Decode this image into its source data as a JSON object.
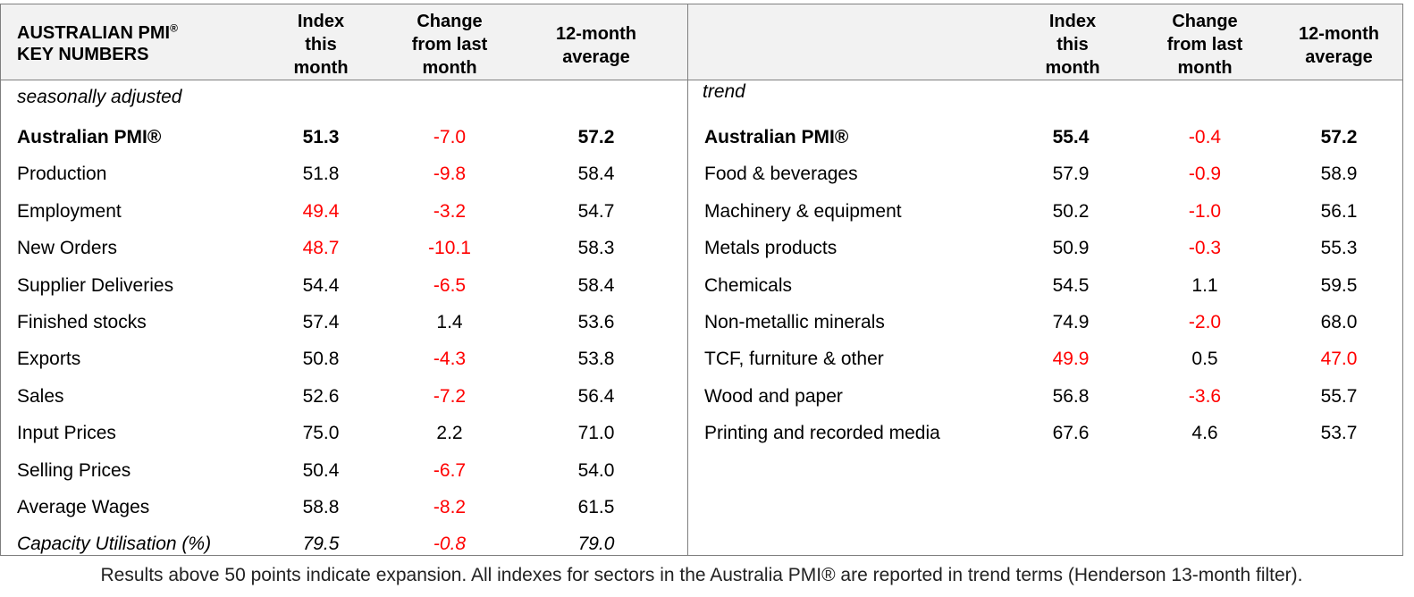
{
  "left": {
    "title_line1": "AUSTRALIAN PMI",
    "title_reg": "®",
    "title_line2": "KEY NUMBERS",
    "headers": [
      [
        "Index",
        "this",
        "month"
      ],
      [
        "Change",
        "from last",
        "month"
      ],
      [
        "12-month",
        "average"
      ]
    ],
    "subtitle": "seasonally adjusted",
    "rows": [
      {
        "label": "Australian PMI®",
        "index": "51.3",
        "change": "-7.0",
        "avg": "57.2",
        "bold": true,
        "italic": false,
        "index_red": false,
        "change_red": true,
        "avg_red": false
      },
      {
        "label": "Production",
        "index": "51.8",
        "change": "-9.8",
        "avg": "58.4",
        "bold": false,
        "italic": false,
        "index_red": false,
        "change_red": true,
        "avg_red": false
      },
      {
        "label": "Employment",
        "index": "49.4",
        "change": "-3.2",
        "avg": "54.7",
        "bold": false,
        "italic": false,
        "index_red": true,
        "change_red": true,
        "avg_red": false
      },
      {
        "label": "New Orders",
        "index": "48.7",
        "change": "-10.1",
        "avg": "58.3",
        "bold": false,
        "italic": false,
        "index_red": true,
        "change_red": true,
        "avg_red": false
      },
      {
        "label": "Supplier Deliveries",
        "index": "54.4",
        "change": "-6.5",
        "avg": "58.4",
        "bold": false,
        "italic": false,
        "index_red": false,
        "change_red": true,
        "avg_red": false
      },
      {
        "label": "Finished stocks",
        "index": "57.4",
        "change": "1.4",
        "avg": "53.6",
        "bold": false,
        "italic": false,
        "index_red": false,
        "change_red": false,
        "avg_red": false
      },
      {
        "label": "Exports",
        "index": "50.8",
        "change": "-4.3",
        "avg": "53.8",
        "bold": false,
        "italic": false,
        "index_red": false,
        "change_red": true,
        "avg_red": false
      },
      {
        "label": "Sales",
        "index": "52.6",
        "change": "-7.2",
        "avg": "56.4",
        "bold": false,
        "italic": false,
        "index_red": false,
        "change_red": true,
        "avg_red": false
      },
      {
        "label": "Input Prices",
        "index": "75.0",
        "change": "2.2",
        "avg": "71.0",
        "bold": false,
        "italic": false,
        "index_red": false,
        "change_red": false,
        "avg_red": false
      },
      {
        "label": "Selling Prices",
        "index": "50.4",
        "change": "-6.7",
        "avg": "54.0",
        "bold": false,
        "italic": false,
        "index_red": false,
        "change_red": true,
        "avg_red": false
      },
      {
        "label": "Average Wages",
        "index": "58.8",
        "change": "-8.2",
        "avg": "61.5",
        "bold": false,
        "italic": false,
        "index_red": false,
        "change_red": true,
        "avg_red": false
      },
      {
        "label": "Capacity Utilisation (%)",
        "index": "79.5",
        "change": "-0.8",
        "avg": "79.0",
        "bold": false,
        "italic": true,
        "index_red": false,
        "change_red": true,
        "avg_red": false
      }
    ]
  },
  "right": {
    "headers": [
      [
        "Index",
        "this",
        "month"
      ],
      [
        "Change",
        "from last",
        "month"
      ],
      [
        "12-month",
        "average"
      ]
    ],
    "subtitle": "trend",
    "rows": [
      {
        "label": "Australian PMI®",
        "index": "55.4",
        "change": "-0.4",
        "avg": "57.2",
        "bold": true,
        "italic": false,
        "index_red": false,
        "change_red": true,
        "avg_red": false
      },
      {
        "label": "Food & beverages",
        "index": "57.9",
        "change": "-0.9",
        "avg": "58.9",
        "bold": false,
        "italic": false,
        "index_red": false,
        "change_red": true,
        "avg_red": false
      },
      {
        "label": "Machinery & equipment",
        "index": "50.2",
        "change": "-1.0",
        "avg": "56.1",
        "bold": false,
        "italic": false,
        "index_red": false,
        "change_red": true,
        "avg_red": false
      },
      {
        "label": "Metals products",
        "index": "50.9",
        "change": "-0.3",
        "avg": "55.3",
        "bold": false,
        "italic": false,
        "index_red": false,
        "change_red": true,
        "avg_red": false
      },
      {
        "label": "Chemicals",
        "index": "54.5",
        "change": "1.1",
        "avg": "59.5",
        "bold": false,
        "italic": false,
        "index_red": false,
        "change_red": false,
        "avg_red": false
      },
      {
        "label": "Non-metallic minerals",
        "index": "74.9",
        "change": "-2.0",
        "avg": "68.0",
        "bold": false,
        "italic": false,
        "index_red": false,
        "change_red": true,
        "avg_red": false
      },
      {
        "label": "TCF, furniture & other",
        "index": "49.9",
        "change": "0.5",
        "avg": "47.0",
        "bold": false,
        "italic": false,
        "index_red": true,
        "change_red": false,
        "avg_red": true
      },
      {
        "label": "Wood and paper",
        "index": "56.8",
        "change": "-3.6",
        "avg": "55.7",
        "bold": false,
        "italic": false,
        "index_red": false,
        "change_red": true,
        "avg_red": false
      },
      {
        "label": "Printing and recorded media",
        "index": "67.6",
        "change": "4.6",
        "avg": "53.7",
        "bold": false,
        "italic": false,
        "index_red": false,
        "change_red": false,
        "avg_red": false
      }
    ]
  },
  "footer": "Results above 50 points indicate expansion. All indexes for sectors in the Australia PMI® are reported in trend terms (Henderson 13-month filter).",
  "colors": {
    "negative": "#ff0000",
    "header_bg": "#f2f2f2",
    "border": "#7f7f7f"
  }
}
